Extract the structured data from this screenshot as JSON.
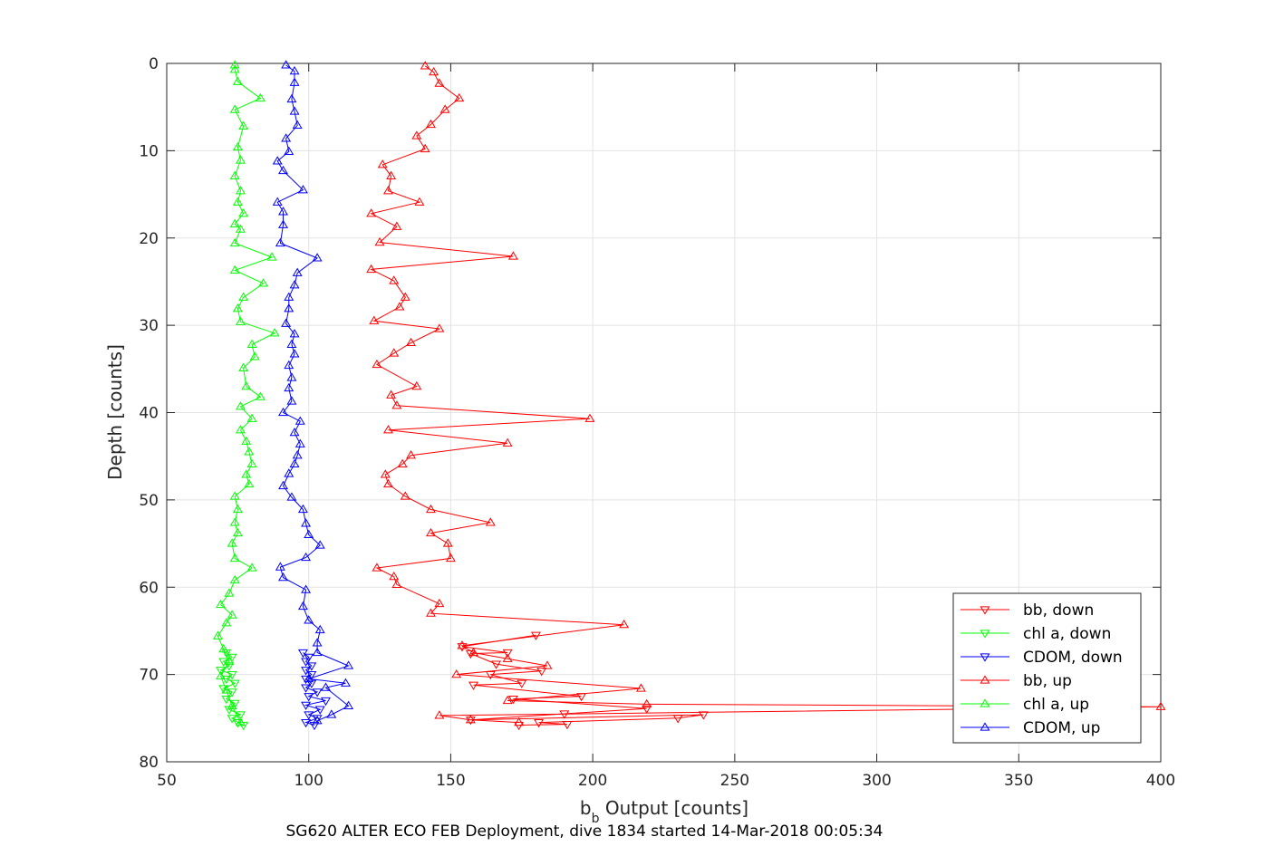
{
  "chart_data": {
    "type": "line",
    "xlabel": "b_b Output [counts]",
    "ylabel": "Depth [counts]",
    "caption": "SG620 ALTER ECO FEB Deployment, dive 1834 started 14-Mar-2018 00:05:34",
    "xlim": [
      50,
      400
    ],
    "ylim": [
      0,
      80
    ],
    "y_reversed": true,
    "grid": true,
    "xticks": [
      "50",
      "100",
      "150",
      "200",
      "250",
      "300",
      "350",
      "400"
    ],
    "yticks": [
      "0",
      "10",
      "20",
      "30",
      "40",
      "50",
      "60",
      "70",
      "80"
    ],
    "legend_position": "bottom-right",
    "series": [
      {
        "name": "bb, down",
        "color": "#ff0000",
        "marker": "triangle-down",
        "points": [
          [
            174,
            75.8
          ],
          [
            191,
            75.7
          ],
          [
            181,
            75.5
          ],
          [
            230,
            75.0
          ],
          [
            239,
            74.6
          ],
          [
            157,
            75.2
          ],
          [
            190,
            74.5
          ],
          [
            219,
            73.9
          ],
          [
            172,
            72.8
          ],
          [
            196,
            72.5
          ],
          [
            158,
            71.2
          ],
          [
            175,
            71.0
          ],
          [
            164,
            70.0
          ],
          [
            182,
            69.6
          ],
          [
            166,
            68.8
          ],
          [
            157,
            67.6
          ],
          [
            170,
            67.5
          ],
          [
            154,
            66.8
          ],
          [
            180,
            65.5
          ]
        ]
      },
      {
        "name": "chl a, down",
        "color": "#00ff00",
        "marker": "triangle-down",
        "points": [
          [
            77,
            75.8
          ],
          [
            75,
            75.5
          ],
          [
            73,
            75.0
          ],
          [
            76,
            74.6
          ],
          [
            72,
            74.0
          ],
          [
            74,
            73.3
          ],
          [
            71,
            72.8
          ],
          [
            73,
            72.0
          ],
          [
            70,
            71.6
          ],
          [
            74,
            71.0
          ],
          [
            71,
            70.5
          ],
          [
            73,
            70.0
          ],
          [
            69,
            69.5
          ],
          [
            72,
            69.0
          ],
          [
            70,
            68.5
          ],
          [
            73,
            68.0
          ],
          [
            71,
            67.5
          ]
        ]
      },
      {
        "name": "CDOM, down",
        "color": "#0000ff",
        "marker": "triangle-down",
        "points": [
          [
            102,
            75.8
          ],
          [
            99,
            75.5
          ],
          [
            103,
            75.0
          ],
          [
            100,
            74.6
          ],
          [
            104,
            74.0
          ],
          [
            99,
            73.5
          ],
          [
            106,
            73.0
          ],
          [
            100,
            72.5
          ],
          [
            103,
            72.0
          ],
          [
            99,
            71.5
          ],
          [
            101,
            71.0
          ],
          [
            99,
            70.5
          ],
          [
            101,
            70.0
          ],
          [
            99,
            69.5
          ],
          [
            101,
            69.0
          ],
          [
            99,
            68.5
          ],
          [
            100,
            68.0
          ],
          [
            98,
            67.5
          ]
        ]
      },
      {
        "name": "bb, up",
        "color": "#ff0000",
        "marker": "triangle-up",
        "points": [
          [
            174,
            75.5
          ],
          [
            157,
            75.2
          ],
          [
            146,
            74.7
          ],
          [
            400,
            73.7
          ],
          [
            219,
            73.4
          ],
          [
            170,
            73.0
          ],
          [
            217,
            71.6
          ],
          [
            152,
            70.0
          ],
          [
            184,
            69.0
          ],
          [
            170,
            68.2
          ],
          [
            158,
            67.5
          ],
          [
            154,
            66.7
          ],
          [
            211,
            64.3
          ],
          [
            143,
            63.0
          ],
          [
            146,
            61.9
          ],
          [
            131,
            59.7
          ],
          [
            130,
            58.8
          ],
          [
            124,
            57.8
          ],
          [
            150,
            56.7
          ],
          [
            149,
            55.0
          ],
          [
            143,
            53.8
          ],
          [
            164,
            52.6
          ],
          [
            143,
            51.1
          ],
          [
            134,
            49.6
          ],
          [
            128,
            48.2
          ],
          [
            127,
            47.1
          ],
          [
            133,
            45.9
          ],
          [
            136,
            44.9
          ],
          [
            170,
            43.5
          ],
          [
            128,
            42.0
          ],
          [
            199,
            40.7
          ],
          [
            131,
            39.2
          ],
          [
            129,
            38.0
          ],
          [
            138,
            37.0
          ],
          [
            124,
            34.5
          ],
          [
            130,
            33.2
          ],
          [
            136,
            32.0
          ],
          [
            146,
            30.4
          ],
          [
            123,
            29.5
          ],
          [
            132,
            27.9
          ],
          [
            134,
            26.8
          ],
          [
            130,
            24.9
          ],
          [
            122,
            23.6
          ],
          [
            172,
            22.1
          ],
          [
            125,
            20.5
          ],
          [
            131,
            18.7
          ],
          [
            122,
            17.2
          ],
          [
            139,
            15.9
          ],
          [
            128,
            14.6
          ],
          [
            129,
            12.9
          ],
          [
            126,
            11.6
          ],
          [
            141,
            9.8
          ],
          [
            138,
            8.3
          ],
          [
            143,
            7.0
          ],
          [
            148,
            5.3
          ],
          [
            153,
            4.0
          ],
          [
            146,
            2.3
          ],
          [
            144,
            1.0
          ],
          [
            141,
            0.3
          ]
        ]
      },
      {
        "name": "chl a, up",
        "color": "#00ff00",
        "marker": "triangle-up",
        "points": [
          [
            76,
            75.5
          ],
          [
            73,
            73.6
          ],
          [
            71,
            71.8
          ],
          [
            69,
            70.2
          ],
          [
            72,
            68.5
          ],
          [
            70,
            67.1
          ],
          [
            68,
            65.6
          ],
          [
            71,
            64.1
          ],
          [
            73,
            63.2
          ],
          [
            69,
            62.0
          ],
          [
            72,
            60.7
          ],
          [
            74,
            59.2
          ],
          [
            80,
            57.8
          ],
          [
            74,
            56.7
          ],
          [
            73,
            55.0
          ],
          [
            75,
            53.8
          ],
          [
            74,
            52.6
          ],
          [
            75,
            51.1
          ],
          [
            74,
            49.6
          ],
          [
            79,
            48.2
          ],
          [
            78,
            47.1
          ],
          [
            80,
            45.9
          ],
          [
            79,
            44.5
          ],
          [
            78,
            43.3
          ],
          [
            76,
            42.0
          ],
          [
            80,
            40.7
          ],
          [
            76,
            39.3
          ],
          [
            83,
            38.2
          ],
          [
            78,
            37.0
          ],
          [
            77,
            34.9
          ],
          [
            81,
            33.6
          ],
          [
            80,
            32.2
          ],
          [
            88,
            30.9
          ],
          [
            76,
            29.6
          ],
          [
            75,
            28.1
          ],
          [
            77,
            26.8
          ],
          [
            84,
            25.2
          ],
          [
            74,
            23.7
          ],
          [
            87,
            22.2
          ],
          [
            74,
            20.6
          ],
          [
            76,
            19.0
          ],
          [
            74,
            18.4
          ],
          [
            77,
            17.2
          ],
          [
            75,
            15.9
          ],
          [
            76,
            14.6
          ],
          [
            74,
            12.9
          ],
          [
            76,
            11.1
          ],
          [
            75,
            9.6
          ],
          [
            77,
            7.2
          ],
          [
            74,
            5.3
          ],
          [
            83,
            4.0
          ],
          [
            75,
            2.1
          ],
          [
            74,
            0.7
          ],
          [
            74,
            0.2
          ]
        ]
      },
      {
        "name": "CDOM, up",
        "color": "#0000ff",
        "marker": "triangle-up",
        "points": [
          [
            103,
            75.3
          ],
          [
            108,
            74.6
          ],
          [
            114,
            73.6
          ],
          [
            106,
            71.5
          ],
          [
            113,
            71.0
          ],
          [
            100,
            70.5
          ],
          [
            114,
            69.0
          ],
          [
            103,
            67.5
          ],
          [
            103,
            66.4
          ],
          [
            104,
            64.9
          ],
          [
            100,
            63.8
          ],
          [
            98,
            62.2
          ],
          [
            99,
            60.3
          ],
          [
            91,
            58.9
          ],
          [
            90,
            57.7
          ],
          [
            99,
            56.6
          ],
          [
            104,
            55.2
          ],
          [
            100,
            54.0
          ],
          [
            99,
            52.7
          ],
          [
            98,
            51.1
          ],
          [
            94,
            49.7
          ],
          [
            91,
            48.4
          ],
          [
            93,
            47.0
          ],
          [
            95,
            45.9
          ],
          [
            96,
            44.9
          ],
          [
            97,
            43.6
          ],
          [
            95,
            42.3
          ],
          [
            97,
            41.0
          ],
          [
            91,
            40.0
          ],
          [
            94,
            38.7
          ],
          [
            93,
            37.2
          ],
          [
            94,
            36.0
          ],
          [
            93,
            34.6
          ],
          [
            95,
            33.3
          ],
          [
            94,
            32.2
          ],
          [
            95,
            31.0
          ],
          [
            92,
            29.8
          ],
          [
            93,
            28.1
          ],
          [
            93,
            26.8
          ],
          [
            95,
            25.4
          ],
          [
            96,
            24.0
          ],
          [
            103,
            22.3
          ],
          [
            90,
            20.6
          ],
          [
            91,
            18.5
          ],
          [
            91,
            17.0
          ],
          [
            89,
            15.9
          ],
          [
            98,
            14.5
          ],
          [
            91,
            12.3
          ],
          [
            89,
            11.2
          ],
          [
            93,
            10.1
          ],
          [
            92,
            8.6
          ],
          [
            96,
            7.1
          ],
          [
            95,
            5.5
          ],
          [
            94,
            4.1
          ],
          [
            95,
            2.2
          ],
          [
            95,
            0.9
          ],
          [
            92,
            0.2
          ]
        ]
      }
    ]
  }
}
